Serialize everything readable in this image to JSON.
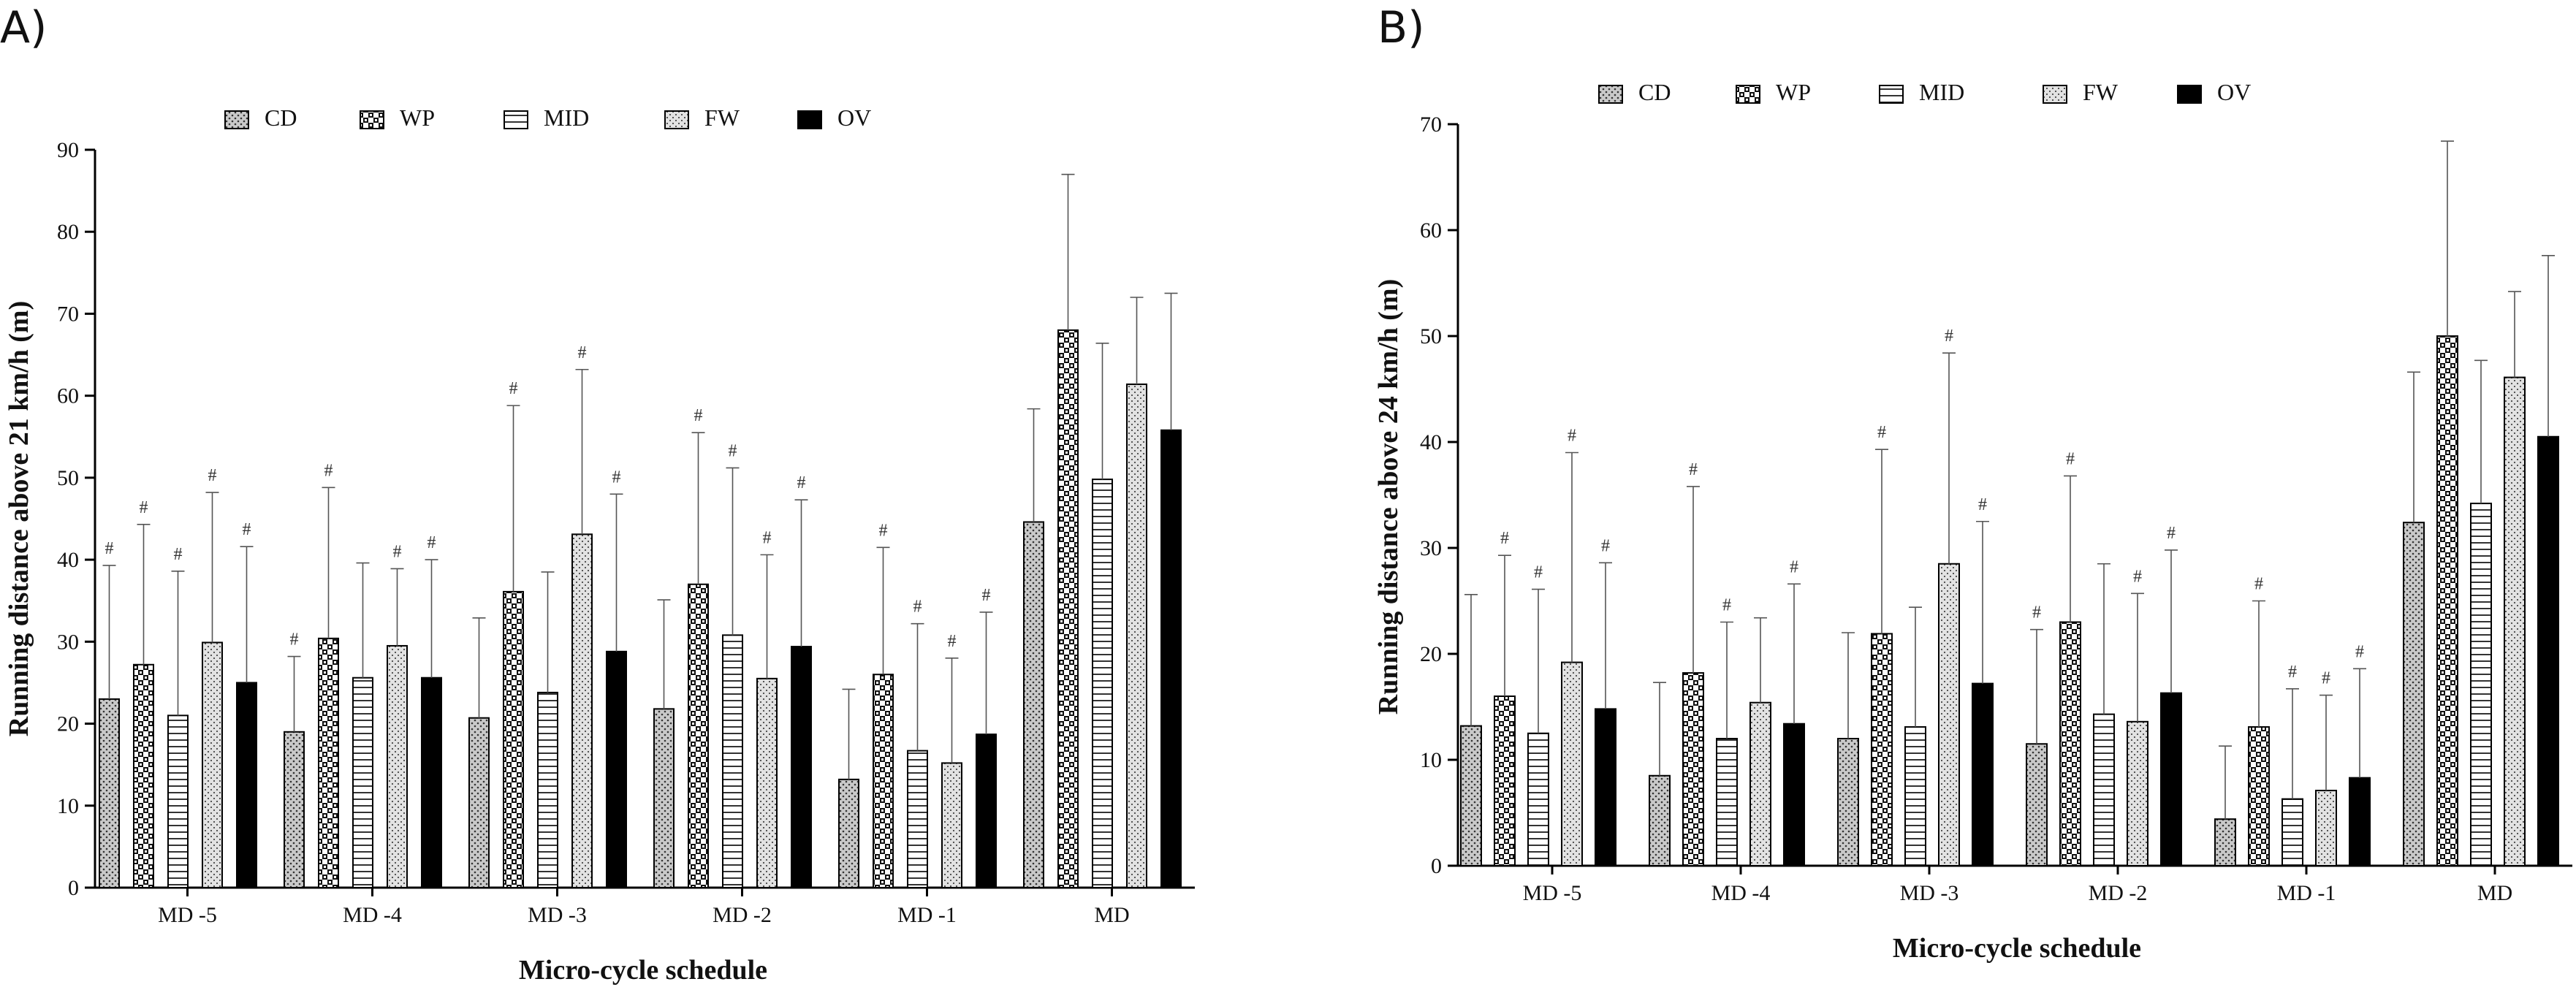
{
  "series_styles": [
    {
      "name": "CD",
      "fill": "url(#pat-cd)"
    },
    {
      "name": "WP",
      "fill": "url(#pat-wp)"
    },
    {
      "name": "MID",
      "fill": "url(#pat-mid)"
    },
    {
      "name": "FW",
      "fill": "url(#pat-fw)"
    },
    {
      "name": "OV",
      "fill": "#000000"
    }
  ],
  "chart_data": [
    {
      "panel_label": "A)",
      "type": "bar",
      "title": "",
      "xlabel": "Micro-cycle schedule",
      "ylabel": "Running distance above 21 km/h (m)",
      "ylim": [
        0,
        90
      ],
      "yticks": [
        0,
        10,
        20,
        30,
        40,
        50,
        60,
        70,
        80,
        90
      ],
      "grid": false,
      "legend": "top",
      "categories": [
        "MD -5",
        "MD -4",
        "MD -3",
        "MD -2",
        "MD -1",
        "MD"
      ],
      "sig_marker": "#",
      "series": [
        {
          "name": "CD",
          "values": [
            23,
            19,
            20.7,
            21.8,
            13.2,
            44.6
          ],
          "error": [
            39.3,
            28.2,
            32.9,
            35.1,
            24.2,
            58.4
          ],
          "sig": [
            true,
            true,
            false,
            false,
            false,
            false
          ]
        },
        {
          "name": "WP",
          "values": [
            27.2,
            30.4,
            36.1,
            37,
            26,
            68
          ],
          "error": [
            44.3,
            48.8,
            58.8,
            55.5,
            41.5,
            87
          ],
          "sig": [
            true,
            true,
            true,
            true,
            true,
            false
          ]
        },
        {
          "name": "MID",
          "values": [
            21,
            25.6,
            23.8,
            30.8,
            16.7,
            49.8
          ],
          "error": [
            38.6,
            39.6,
            38.5,
            51.2,
            32.2,
            66.4
          ],
          "sig": [
            true,
            false,
            false,
            true,
            true,
            false
          ]
        },
        {
          "name": "FW",
          "values": [
            29.9,
            29.5,
            43.1,
            25.5,
            15.2,
            61.4
          ],
          "error": [
            48.2,
            38.9,
            63.2,
            40.6,
            28,
            72
          ],
          "sig": [
            true,
            true,
            true,
            true,
            true,
            false
          ]
        },
        {
          "name": "OV",
          "values": [
            25,
            25.6,
            28.8,
            29.4,
            18.7,
            55.8
          ],
          "error": [
            41.6,
            40,
            48,
            47.3,
            33.6,
            72.5
          ],
          "sig": [
            true,
            true,
            true,
            true,
            true,
            false
          ]
        }
      ]
    },
    {
      "panel_label": "B)",
      "type": "bar",
      "title": "",
      "xlabel": "Micro-cycle schedule",
      "ylabel": "Running distance above 24 km/h (m)",
      "ylim": [
        0,
        70
      ],
      "yticks": [
        0,
        10,
        20,
        30,
        40,
        50,
        60,
        70
      ],
      "grid": false,
      "legend": "top",
      "categories": [
        "MD -5",
        "MD -4",
        "MD -3",
        "MD -2",
        "MD -1",
        "MD"
      ],
      "sig_marker": "#",
      "series": [
        {
          "name": "CD",
          "values": [
            13.2,
            8.5,
            12,
            11.5,
            4.4,
            32.4
          ],
          "error": [
            25.6,
            17.3,
            22,
            22.3,
            11.3,
            46.6
          ],
          "sig": [
            false,
            false,
            false,
            true,
            false,
            false
          ]
        },
        {
          "name": "WP",
          "values": [
            16,
            18.2,
            21.9,
            23,
            13.1,
            50
          ],
          "error": [
            29.3,
            35.8,
            39.3,
            36.8,
            25,
            68.4
          ],
          "sig": [
            true,
            true,
            true,
            true,
            true,
            false
          ]
        },
        {
          "name": "MID",
          "values": [
            12.5,
            12,
            13.1,
            14.3,
            6.3,
            34.2
          ],
          "error": [
            26.1,
            23,
            24.4,
            28.5,
            16.7,
            47.7
          ],
          "sig": [
            true,
            true,
            false,
            false,
            true,
            false
          ]
        },
        {
          "name": "FW",
          "values": [
            19.2,
            15.4,
            28.5,
            13.6,
            7.1,
            46.1
          ],
          "error": [
            39,
            23.4,
            48.4,
            25.7,
            16.1,
            54.2
          ],
          "sig": [
            true,
            false,
            true,
            true,
            true,
            false
          ]
        },
        {
          "name": "OV",
          "values": [
            14.8,
            13.4,
            17.2,
            16.3,
            8.3,
            40.5
          ],
          "error": [
            28.6,
            26.6,
            32.5,
            29.8,
            18.6,
            57.6
          ],
          "sig": [
            true,
            true,
            true,
            true,
            true,
            false
          ]
        }
      ]
    }
  ]
}
